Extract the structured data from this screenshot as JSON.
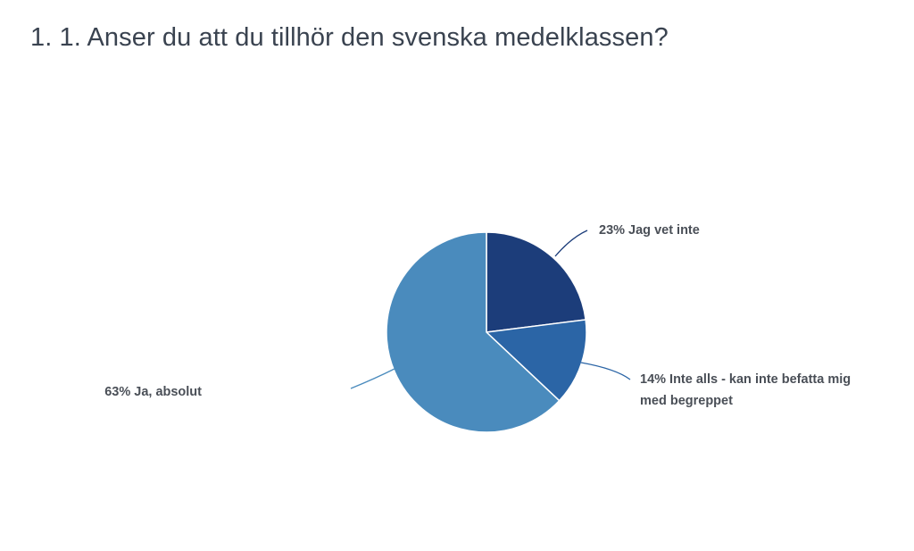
{
  "question": {
    "title": "1. 1. Anser du att du tillhör den svenska medelklassen?"
  },
  "chart_data": {
    "type": "pie",
    "title": "1. 1. Anser du att du tillhör den svenska medelklassen?",
    "slices": [
      {
        "label": "Jag vet inte",
        "value": 23,
        "display_lines": [
          "23% Jag vet inte"
        ],
        "color": "#1c3d7a"
      },
      {
        "label": "Inte alls - kan inte befatta mig med begreppet",
        "value": 14,
        "display_lines": [
          "14% Inte alls - kan inte befatta mig",
          "med begreppet"
        ],
        "color": "#2b65a6"
      },
      {
        "label": "Ja, absolut",
        "value": 63,
        "display_lines": [
          "63% Ja, absolut"
        ],
        "color": "#4a8bbd"
      }
    ],
    "legend": "none"
  }
}
